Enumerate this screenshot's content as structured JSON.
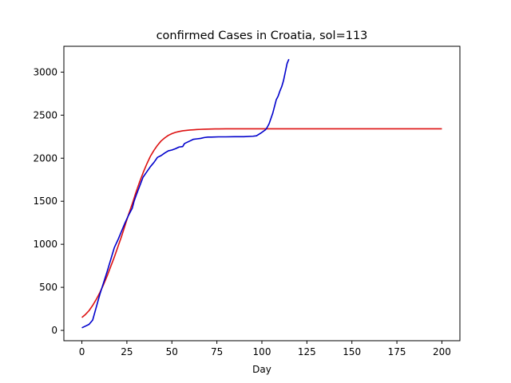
{
  "chart_data": {
    "type": "line",
    "title": "confirmed Cases in Croatia, sol=113",
    "xlabel": "Day",
    "ylabel": "",
    "xlim": [
      -10,
      210
    ],
    "ylim": [
      -120,
      3300
    ],
    "xticks": [
      0,
      25,
      50,
      75,
      100,
      125,
      150,
      175,
      200
    ],
    "yticks": [
      0,
      500,
      1000,
      1500,
      2000,
      2500,
      3000
    ],
    "grid": false,
    "legend": "none",
    "series": [
      {
        "color": "#dd1111",
        "style": "model-fit",
        "x": [
          0,
          2,
          4,
          6,
          8,
          10,
          12,
          14,
          16,
          18,
          20,
          22,
          24,
          26,
          28,
          30,
          32,
          34,
          36,
          38,
          40,
          42,
          44,
          46,
          48,
          50,
          52,
          54,
          56,
          58,
          60,
          62,
          64,
          66,
          68,
          70,
          72,
          74,
          76,
          80,
          85,
          90,
          95,
          100,
          110,
          120,
          130,
          140,
          150,
          160,
          170,
          180,
          190,
          200
        ],
        "values": [
          150,
          185,
          230,
          290,
          360,
          440,
          530,
          630,
          740,
          850,
          970,
          1090,
          1220,
          1350,
          1470,
          1600,
          1720,
          1830,
          1930,
          2020,
          2090,
          2150,
          2200,
          2235,
          2265,
          2285,
          2300,
          2310,
          2318,
          2323,
          2327,
          2330,
          2333,
          2335,
          2337,
          2338,
          2339,
          2340,
          2340,
          2341,
          2341,
          2341,
          2341,
          2341,
          2341,
          2341,
          2341,
          2341,
          2341,
          2341,
          2341,
          2341,
          2341,
          2341
        ]
      },
      {
        "color": "#0000cc",
        "style": "confirmed",
        "x": [
          0,
          2,
          4,
          6,
          8,
          10,
          12,
          14,
          16,
          18,
          20,
          22,
          24,
          26,
          28,
          29,
          30,
          32,
          34,
          36,
          38,
          40,
          42,
          44,
          46,
          48,
          50,
          52,
          54,
          56,
          57,
          58,
          60,
          62,
          64,
          66,
          68,
          70,
          72,
          76,
          80,
          85,
          90,
          95,
          97,
          100,
          102,
          103,
          104,
          105,
          106,
          107,
          108,
          109,
          110,
          111,
          112,
          113,
          114,
          115
        ],
        "values": [
          30,
          50,
          70,
          120,
          270,
          420,
          550,
          680,
          820,
          960,
          1050,
          1150,
          1250,
          1340,
          1420,
          1500,
          1560,
          1670,
          1780,
          1840,
          1900,
          1950,
          2010,
          2030,
          2060,
          2085,
          2095,
          2110,
          2130,
          2135,
          2170,
          2180,
          2200,
          2220,
          2225,
          2230,
          2240,
          2245,
          2245,
          2248,
          2248,
          2250,
          2250,
          2255,
          2260,
          2300,
          2330,
          2360,
          2400,
          2460,
          2520,
          2600,
          2680,
          2720,
          2780,
          2830,
          2900,
          3000,
          3100,
          3150
        ]
      }
    ]
  }
}
